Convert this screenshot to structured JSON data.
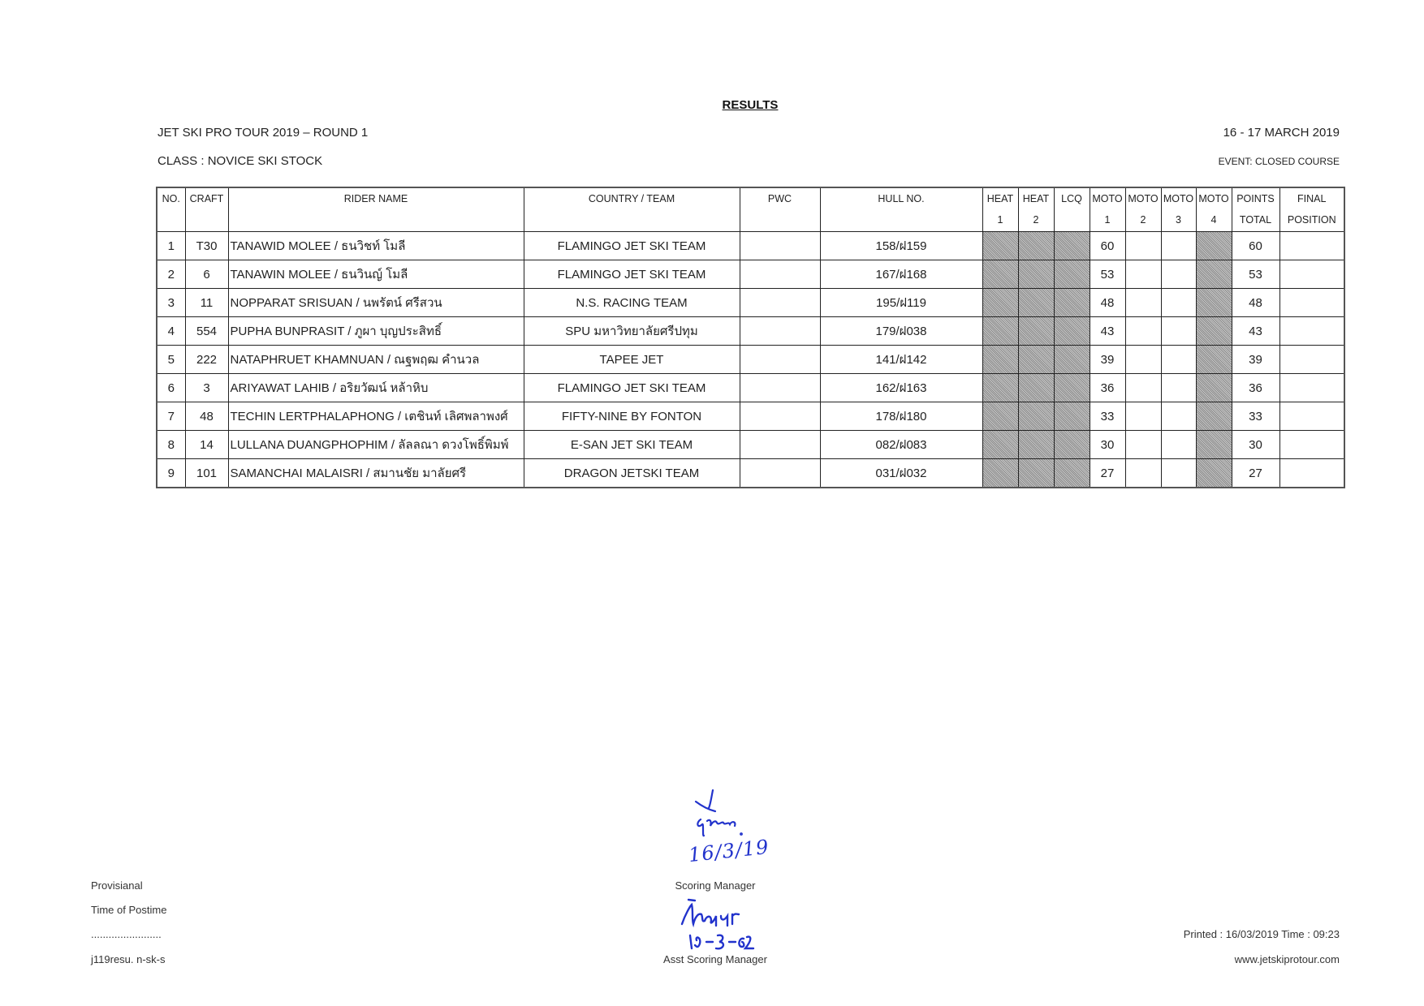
{
  "header": {
    "title": "RESULTS",
    "event_name": "JET SKI PRO TOUR 2019 – ROUND 1",
    "class": "CLASS : NOVICE SKI  STOCK",
    "date": "16 - 17 MARCH   2019",
    "event_type": "EVENT: CLOSED COURSE"
  },
  "table": {
    "columns": [
      {
        "l1": "NO.",
        "l2": ""
      },
      {
        "l1": "CRAFT",
        "l2": ""
      },
      {
        "l1": "RIDER NAME",
        "l2": ""
      },
      {
        "l1": "COUNTRY / TEAM",
        "l2": ""
      },
      {
        "l1": "PWC",
        "l2": ""
      },
      {
        "l1": "HULL NO.",
        "l2": ""
      },
      {
        "l1": "HEAT",
        "l2": "1"
      },
      {
        "l1": "HEAT",
        "l2": "2"
      },
      {
        "l1": "LCQ",
        "l2": ""
      },
      {
        "l1": "MOTO",
        "l2": "1"
      },
      {
        "l1": "MOTO",
        "l2": "2"
      },
      {
        "l1": "MOTO",
        "l2": "3"
      },
      {
        "l1": "MOTO",
        "l2": "4"
      },
      {
        "l1": "POINTS",
        "l2": "TOTAL"
      },
      {
        "l1": "FINAL",
        "l2": "POSITION"
      }
    ],
    "rows": [
      {
        "no": "1",
        "craft": "T30",
        "rider": "TANAWID MOLEE / ธนวิชท์ โมลี",
        "team": "FLAMINGO JET SKI TEAM",
        "pwc": "",
        "hull": "158/ฝ159",
        "moto1": "60",
        "moto2": "",
        "moto3": "",
        "total": "60",
        "final": ""
      },
      {
        "no": "2",
        "craft": "6",
        "rider": "TANAWIN MOLEE / ธนวินญ์ โมลี",
        "team": "FLAMINGO JET SKI TEAM",
        "pwc": "",
        "hull": "167/ฝ168",
        "moto1": "53",
        "moto2": "",
        "moto3": "",
        "total": "53",
        "final": ""
      },
      {
        "no": "3",
        "craft": "11",
        "rider": "NOPPARAT SRISUAN / นพรัตน์ ศรีสวน",
        "team": "N.S. RACING TEAM",
        "pwc": "",
        "hull": "195/ฝ119",
        "moto1": "48",
        "moto2": "",
        "moto3": "",
        "total": "48",
        "final": ""
      },
      {
        "no": "4",
        "craft": "554",
        "rider": "PUPHA BUNPRASIT / ภูผา บุญประสิทธิ์",
        "team": "SPU มหาวิทยาลัยศรีปทุม",
        "pwc": "",
        "hull": "179/ฝ038",
        "moto1": "43",
        "moto2": "",
        "moto3": "",
        "total": "43",
        "final": ""
      },
      {
        "no": "5",
        "craft": "222",
        "rider": "NATAPHRUET KHAMNUAN / ณฐพฤฒ คำนวล",
        "team": "TAPEE JET",
        "pwc": "",
        "hull": "141/ฝ142",
        "moto1": "39",
        "moto2": "",
        "moto3": "",
        "total": "39",
        "final": ""
      },
      {
        "no": "6",
        "craft": "3",
        "rider": "ARIYAWAT LAHIB / อริยวัฒน์ หล้าหิบ",
        "team": "FLAMINGO JET SKI TEAM",
        "pwc": "",
        "hull": "162/ฝ163",
        "moto1": "36",
        "moto2": "",
        "moto3": "",
        "total": "36",
        "final": ""
      },
      {
        "no": "7",
        "craft": "48",
        "rider": "TECHIN LERTPHALAPHONG / เตชินท์ เลิศพลาพงศ์",
        "team": "FIFTY-NINE BY FONTON",
        "pwc": "",
        "hull": "178/ฝ180",
        "moto1": "33",
        "moto2": "",
        "moto3": "",
        "total": "33",
        "final": ""
      },
      {
        "no": "8",
        "craft": "14",
        "rider": "LULLANA DUANGPHOPHIM / ลัลลณา ดวงโพธิ์พิมพ์",
        "team": "E-SAN JET SKI TEAM",
        "pwc": "",
        "hull": "082/ฝ083",
        "moto1": "30",
        "moto2": "",
        "moto3": "",
        "total": "30",
        "final": ""
      },
      {
        "no": "9",
        "craft": "101",
        "rider": "SAMANCHAI MALAISRI / สมานชัย มาลัยศรี",
        "team": "DRAGON JETSKI TEAM",
        "pwc": "",
        "hull": "031/ฝ032",
        "moto1": "27",
        "moto2": "",
        "moto3": "",
        "total": "27",
        "final": ""
      }
    ],
    "shade_color": "#9a9a9a"
  },
  "footer": {
    "provisional": "Provisianal",
    "time_of_postime": "Time of Postime",
    "dots": "........................",
    "file_code": "j119resu.  n-sk-s",
    "scoring_manager": "Scoring Manager",
    "asst_scoring_manager": "Asst Scoring Manager",
    "printed": "Printed : 16/03/2019 Time : 09:23",
    "website": "www.jetskiprotour.com",
    "signature_1_text": "16/3/19",
    "signature_2_text": "16-3-62",
    "signature_color": "#2233cc"
  }
}
